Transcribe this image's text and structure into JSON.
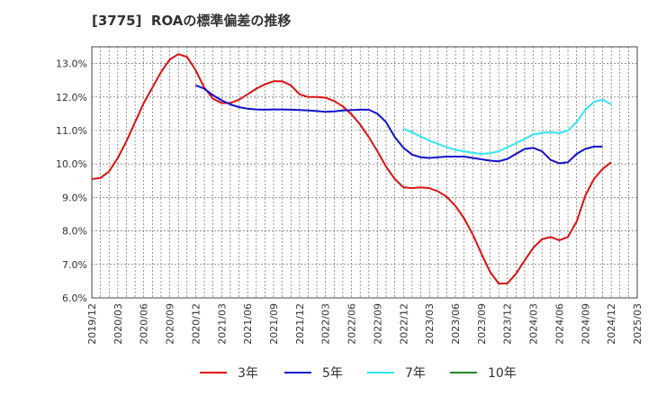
{
  "chart_data": {
    "type": "line",
    "title": "[3775]  ROAの標準偏差の推移",
    "xlabel": "",
    "ylabel": "",
    "ylim": [
      6.0,
      13.5
    ],
    "y_ticks": [
      "6.0%",
      "7.0%",
      "8.0%",
      "9.0%",
      "10.0%",
      "11.0%",
      "12.0%",
      "13.0%"
    ],
    "y_tick_values": [
      6,
      7,
      8,
      9,
      10,
      11,
      12,
      13
    ],
    "x_ticks": [
      "2019/12",
      "2020/03",
      "2020/06",
      "2020/09",
      "2020/12",
      "2021/03",
      "2021/06",
      "2021/09",
      "2021/12",
      "2022/03",
      "2022/06",
      "2022/09",
      "2022/12",
      "2023/03",
      "2023/06",
      "2023/09",
      "2023/12",
      "2024/03",
      "2024/06",
      "2024/09",
      "2024/12",
      "2025/03"
    ],
    "grid": true,
    "legend_position": "bottom",
    "series": [
      {
        "name": "3年",
        "color": "#dd1111",
        "start_index": 0,
        "values": [
          9.55,
          9.58,
          9.78,
          10.18,
          10.68,
          11.25,
          11.82,
          12.28,
          12.75,
          13.12,
          13.28,
          13.2,
          12.8,
          12.28,
          11.95,
          11.82,
          11.82,
          11.92,
          12.08,
          12.25,
          12.38,
          12.47,
          12.47,
          12.35,
          12.08,
          12.0,
          12.0,
          11.98,
          11.88,
          11.72,
          11.48,
          11.18,
          10.8,
          10.38,
          9.92,
          9.55,
          9.3,
          9.28,
          9.3,
          9.28,
          9.18,
          9.02,
          8.75,
          8.38,
          7.9,
          7.32,
          6.78,
          6.43,
          6.43,
          6.72,
          7.12,
          7.5,
          7.75,
          7.82,
          7.72,
          7.82,
          8.28,
          9.05,
          9.55,
          9.85,
          10.05
        ]
      },
      {
        "name": "5年",
        "color": "#1111cc",
        "start_index": 12,
        "values": [
          12.35,
          12.25,
          12.05,
          11.9,
          11.78,
          11.7,
          11.65,
          11.63,
          11.62,
          11.63,
          11.63,
          11.62,
          11.61,
          11.6,
          11.58,
          11.56,
          11.57,
          11.6,
          11.61,
          11.62,
          11.62,
          11.5,
          11.25,
          10.8,
          10.48,
          10.28,
          10.2,
          10.18,
          10.2,
          10.22,
          10.22,
          10.22,
          10.18,
          10.14,
          10.1,
          10.08,
          10.15,
          10.3,
          10.45,
          10.48,
          10.38,
          10.12,
          10.02,
          10.05,
          10.3,
          10.45,
          10.52,
          10.52
        ]
      },
      {
        "name": "7年",
        "color": "#33e6f0",
        "start_index": 36,
        "values": [
          11.05,
          10.95,
          10.82,
          10.7,
          10.6,
          10.5,
          10.42,
          10.38,
          10.33,
          10.3,
          10.32,
          10.38,
          10.5,
          10.62,
          10.75,
          10.88,
          10.93,
          10.95,
          10.92,
          11.0,
          11.25,
          11.62,
          11.85,
          11.92,
          11.78
        ]
      },
      {
        "name": "10年",
        "color": "#228822",
        "start_index": 0,
        "values": []
      }
    ]
  }
}
